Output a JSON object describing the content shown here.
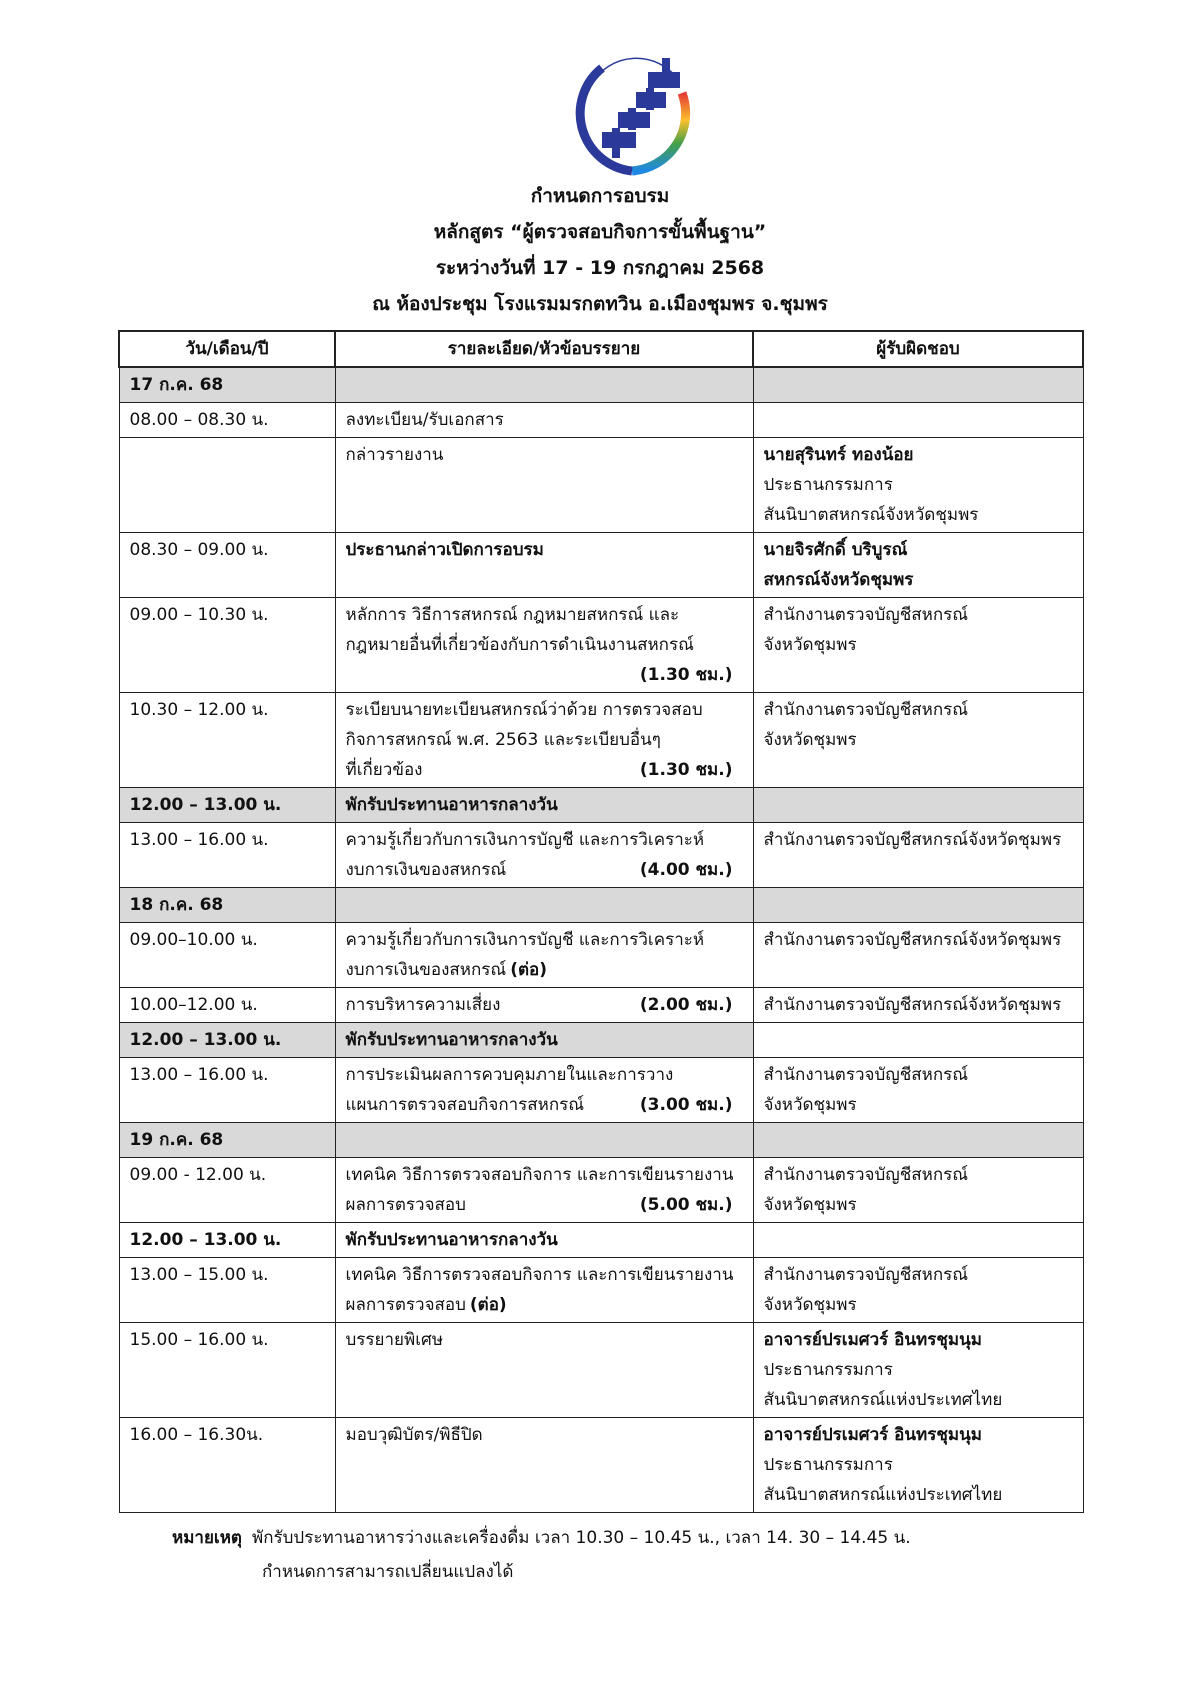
{
  "logo": {
    "text": "สันนิบาตสหกรณ์จังหวัดชุมพร",
    "colors": {
      "blue": "#2b3a9a",
      "arc": [
        "#e53935",
        "#fbc02d",
        "#43a047",
        "#1e88e5"
      ]
    }
  },
  "header": {
    "line1": "กำหนดการอบรม",
    "line2": "หลักสูตร “ผู้ตรวจสอบกิจการขั้นพื้นฐาน”",
    "line3": "ระหว่างวันที่  17 - 19 กรกฎาคม 2568",
    "line4": "ณ ห้องประชุม  โรงแรมมรกตทวิน อ.เมืองชุมพร จ.ชุมพร"
  },
  "table": {
    "columns": [
      "วัน/เดือน/ปี",
      "รายละเอียด/หัวข้อบรรยาย",
      "ผู้รับผิดชอบ"
    ],
    "rows": [
      {
        "type": "day",
        "label": "17 ก.ค. 68"
      },
      {
        "time": "08.00 – 08.30 น.",
        "detail": [
          {
            "t": "ลงทะเบียน/รับเอกสาร"
          }
        ],
        "resp": []
      },
      {
        "time": "",
        "detail": [
          {
            "t": "กล่าวรายงาน"
          }
        ],
        "resp": [
          {
            "t": "นายสุรินทร์  ทองน้อย",
            "b": true
          },
          {
            "t": "ประธานกรรมการ"
          },
          {
            "t": "สันนิบาตสหกรณ์จังหวัดชุมพร"
          }
        ]
      },
      {
        "time": "08.30 – 09.00 น.",
        "detail": [
          {
            "t": "ประธานกล่าวเปิดการอบรม",
            "b": true
          }
        ],
        "resp": [
          {
            "t": "นายจิรศักดิ์ บริบูรณ์",
            "b": true
          },
          {
            "t": "สหกรณ์จังหวัดชุมพร",
            "b": true
          }
        ]
      },
      {
        "time": "09.00 – 10.30 น.",
        "detail": [
          {
            "t": "หลักการ วิธีการสหกรณ์ กฎหมายสหกรณ์ และ"
          },
          {
            "t": "กฎหมายอื่นที่เกี่ยวข้องกับการดำเนินงานสหกรณ์"
          },
          {
            "t": "",
            "h": "(1.30 ชม.)"
          }
        ],
        "resp": [
          {
            "t": "สำนักงานตรวจบัญชีสหกรณ์"
          },
          {
            "t": "จังหวัดชุมพร"
          }
        ]
      },
      {
        "time": "10.30 – 12.00 น.",
        "detail": [
          {
            "t": "ระเบียบนายทะเบียนสหกรณ์ว่าด้วย การตรวจสอบ"
          },
          {
            "t": "กิจการสหกรณ์ พ.ศ. 2563 และระเบียบอื่นๆ"
          },
          {
            "t": "ที่เกี่ยวข้อง",
            "h": "(1.30 ชม.)"
          }
        ],
        "resp": [
          {
            "t": "สำนักงานตรวจบัญชีสหกรณ์"
          },
          {
            "t": "จังหวัดชุมพร"
          }
        ]
      },
      {
        "type": "lunch",
        "shade": "all",
        "time": "12.00 – 13.00 น.",
        "detail": [
          {
            "t": "พักรับประทานอาหารกลางวัน",
            "b": true
          }
        ],
        "resp": []
      },
      {
        "time": "13.00 – 16.00 น.",
        "detail": [
          {
            "t": "ความรู้เกี่ยวกับการเงินการบัญชี และการวิเคราะห์"
          },
          {
            "t": "งบการเงินของสหกรณ์",
            "h": "(4.00 ชม.)"
          }
        ],
        "resp": [
          {
            "t": "สำนักงานตรวจบัญชีสหกรณ์จังหวัดชุมพร"
          }
        ]
      },
      {
        "type": "day",
        "label": "18 ก.ค. 68"
      },
      {
        "time": "09.00–10.00 น.",
        "detail": [
          {
            "t": "ความรู้เกี่ยวกับการเงินการบัญชี และการวิเคราะห์"
          },
          {
            "t": "งบการเงินของสหกรณ์ ",
            "s": "(ต่อ)"
          }
        ],
        "resp": [
          {
            "t": "สำนักงานตรวจบัญชีสหกรณ์จังหวัดชุมพร"
          }
        ]
      },
      {
        "time": "10.00–12.00 น.",
        "detail": [
          {
            "t": "การบริหารความเสี่ยง",
            "h": "(2.00 ชม.)"
          }
        ],
        "resp": [
          {
            "t": "สำนักงานตรวจบัญชีสหกรณ์จังหวัดชุมพร"
          }
        ]
      },
      {
        "type": "lunch",
        "shade": "two",
        "time": "12.00 – 13.00 น.",
        "detail": [
          {
            "t": "พักรับประทานอาหารกลางวัน",
            "b": true
          }
        ],
        "resp": []
      },
      {
        "time": "13.00 – 16.00 น.",
        "detail": [
          {
            "t": "การประเมินผลการควบคุมภายในและการวาง"
          },
          {
            "t": "แผนการตรวจสอบกิจการสหกรณ์",
            "h": "(3.00 ชม.)"
          }
        ],
        "resp": [
          {
            "t": "สำนักงานตรวจบัญชีสหกรณ์"
          },
          {
            "t": "จังหวัดชุมพร"
          }
        ]
      },
      {
        "type": "day",
        "label": "19 ก.ค. 68"
      },
      {
        "time": "09.00 - 12.00 น.",
        "detail": [
          {
            "t": "เทคนิค วิธีการตรวจสอบกิจการ และการเขียนรายงาน"
          },
          {
            "t": "ผลการตรวจสอบ",
            "h": "(5.00 ชม.)"
          }
        ],
        "resp": [
          {
            "t": "สำนักงานตรวจบัญชีสหกรณ์"
          },
          {
            "t": "จังหวัดชุมพร"
          }
        ]
      },
      {
        "type": "lunch",
        "shade": "none",
        "time": "12.00 – 13.00 น.",
        "detail": [
          {
            "t": "พักรับประทานอาหารกลางวัน",
            "b": true
          }
        ],
        "resp": []
      },
      {
        "time": "13.00 – 15.00 น.",
        "detail": [
          {
            "t": "เทคนิค วิธีการตรวจสอบกิจการ และการเขียนรายงาน"
          },
          {
            "t": "ผลการตรวจสอบ ",
            "s": "(ต่อ)"
          }
        ],
        "resp": [
          {
            "t": "สำนักงานตรวจบัญชีสหกรณ์"
          },
          {
            "t": "จังหวัดชุมพร"
          }
        ]
      },
      {
        "time": "15.00 – 16.00 น.",
        "detail": [
          {
            "t": "บรรยายพิเศษ"
          }
        ],
        "resp": [
          {
            "t": "อาจารย์ปรเมศวร์  อินทรชุมนุม",
            "b": true
          },
          {
            "t": "ประธานกรรมการ"
          },
          {
            "t": "สันนิบาตสหกรณ์แห่งประเทศไทย"
          }
        ]
      },
      {
        "time": "16.00 – 16.30น.",
        "detail": [
          {
            "t": "มอบวุฒิบัตร/พิธีปิด"
          }
        ],
        "resp": [
          {
            "t": "อาจารย์ปรเมศวร์  อินทรชุมนุม",
            "b": true
          },
          {
            "t": "ประธานกรรมการ"
          },
          {
            "t": "สันนิบาตสหกรณ์แห่งประเทศไทย"
          }
        ]
      }
    ]
  },
  "note": {
    "label": "หมายเหตุ",
    "line1": "พักรับประทานอาหารว่างและเครื่องดื่ม เวลา 10.30 – 10.45 น., เวลา 14. 30 – 14.45 น.",
    "line2": "กำหนดการสามารถเปลี่ยนแปลงได้"
  }
}
